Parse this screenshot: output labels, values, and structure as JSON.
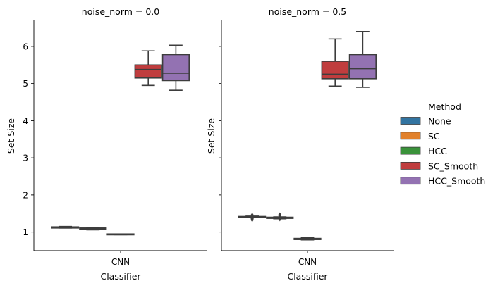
{
  "chart_data": {
    "type": "box",
    "ylabel": "Set Size",
    "xlabel": "Classifier",
    "ylim": [
      0.5,
      6.7
    ],
    "yticks": [
      1,
      2,
      3,
      4,
      5,
      6
    ],
    "category": "CNN",
    "legend": {
      "title": "Method",
      "placement": "right",
      "entries": [
        {
          "name": "None",
          "color": "#3274a1"
        },
        {
          "name": "SC",
          "color": "#e1812c"
        },
        {
          "name": "HCC",
          "color": "#3a923a"
        },
        {
          "name": "SC_Smooth",
          "color": "#c03d3e"
        },
        {
          "name": "HCC_Smooth",
          "color": "#9372b2"
        }
      ]
    },
    "panels": [
      {
        "title": "noise_norm = 0.0",
        "boxes": [
          {
            "method": "None",
            "whislo": 1.11,
            "q1": 1.11,
            "med": 1.13,
            "q3": 1.14,
            "whishi": 1.15,
            "fliers": []
          },
          {
            "method": "SC",
            "whislo": 1.06,
            "q1": 1.08,
            "med": 1.1,
            "q3": 1.11,
            "whishi": 1.13,
            "fliers": []
          },
          {
            "method": "HCC",
            "whislo": 0.93,
            "q1": 0.93,
            "med": 0.94,
            "q3": 0.95,
            "whishi": 0.95,
            "fliers": []
          },
          {
            "method": "SC_Smooth",
            "whislo": 4.95,
            "q1": 5.15,
            "med": 5.38,
            "q3": 5.5,
            "whishi": 5.88,
            "fliers": []
          },
          {
            "method": "HCC_Smooth",
            "whislo": 4.82,
            "q1": 5.08,
            "med": 5.28,
            "q3": 5.78,
            "whishi": 6.03,
            "fliers": []
          }
        ]
      },
      {
        "title": "noise_norm = 0.5",
        "boxes": [
          {
            "method": "None",
            "whislo": 1.39,
            "q1": 1.4,
            "med": 1.41,
            "q3": 1.42,
            "whishi": 1.43,
            "fliers": [
              1.33,
              1.36,
              1.38,
              1.43,
              1.46
            ]
          },
          {
            "method": "SC",
            "whislo": 1.36,
            "q1": 1.37,
            "med": 1.38,
            "q3": 1.4,
            "whishi": 1.41,
            "fliers": [
              1.35,
              1.41,
              1.44,
              1.47
            ]
          },
          {
            "method": "HCC",
            "whislo": 0.79,
            "q1": 0.8,
            "med": 0.82,
            "q3": 0.83,
            "whishi": 0.85,
            "fliers": []
          },
          {
            "method": "SC_Smooth",
            "whislo": 4.93,
            "q1": 5.13,
            "med": 5.25,
            "q3": 5.6,
            "whishi": 6.2,
            "fliers": []
          },
          {
            "method": "HCC_Smooth",
            "whislo": 4.9,
            "q1": 5.13,
            "med": 5.4,
            "q3": 5.78,
            "whishi": 6.4,
            "fliers": []
          }
        ]
      }
    ]
  }
}
